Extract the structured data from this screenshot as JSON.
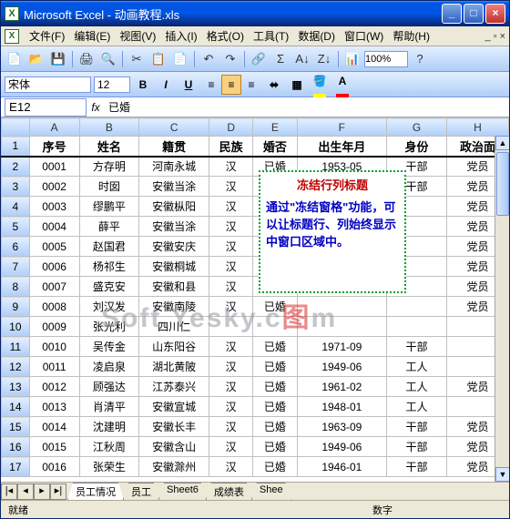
{
  "window": {
    "title": "Microsoft Excel - 动画教程.xls"
  },
  "menu": [
    "文件(F)",
    "编辑(E)",
    "视图(V)",
    "插入(I)",
    "格式(O)",
    "工具(T)",
    "数据(D)",
    "窗口(W)",
    "帮助(H)"
  ],
  "toolbar": {
    "zoom": "100%"
  },
  "fmt": {
    "font": "宋体",
    "size": "12"
  },
  "fx": {
    "name": "E12",
    "label": "fx",
    "value": "已婚"
  },
  "columns": [
    "A",
    "B",
    "C",
    "D",
    "E",
    "F",
    "G",
    "H"
  ],
  "headers": [
    "序号",
    "姓名",
    "籍贯",
    "民族",
    "婚否",
    "出生年月",
    "身份",
    "政治面"
  ],
  "rows": [
    [
      "0001",
      "方存明",
      "河南永城",
      "汉",
      "已婚",
      "1953-05",
      "干部",
      "党员"
    ],
    [
      "0002",
      "时囡",
      "安徽当涂",
      "汉",
      "已婚",
      "1947-10",
      "干部",
      "党员"
    ],
    [
      "0003",
      "缪鹏平",
      "安徽枞阳",
      "汉",
      "已婚",
      "",
      "",
      "党员"
    ],
    [
      "0004",
      "薛平",
      "安徽当涂",
      "汉",
      "已婚",
      "",
      "",
      "党员"
    ],
    [
      "0005",
      "赵国君",
      "安徽安庆",
      "汉",
      "已婚",
      "",
      "",
      "党员"
    ],
    [
      "0006",
      "杨祁生",
      "安徽桐城",
      "汉",
      "已婚",
      "",
      "",
      "党员"
    ],
    [
      "0007",
      "盛克安",
      "安徽和县",
      "汉",
      "已婚",
      "",
      "",
      "党员"
    ],
    [
      "0008",
      "刘汉发",
      "安徽南陵",
      "汉",
      "已婚",
      "",
      "",
      "党员"
    ],
    [
      "0009",
      "张光利",
      "四川仁",
      "",
      "",
      "",
      "",
      ""
    ],
    [
      "0010",
      "吴传金",
      "山东阳谷",
      "汉",
      "已婚",
      "1971-09",
      "干部",
      ""
    ],
    [
      "0011",
      "凌启泉",
      "湖北黄陂",
      "汉",
      "已婚",
      "1949-06",
      "工人",
      ""
    ],
    [
      "0012",
      "顾强达",
      "江苏泰兴",
      "汉",
      "已婚",
      "1961-02",
      "工人",
      "党员"
    ],
    [
      "0013",
      "肖清平",
      "安徽宣城",
      "汉",
      "已婚",
      "1948-01",
      "工人",
      ""
    ],
    [
      "0014",
      "沈建明",
      "安徽长丰",
      "汉",
      "已婚",
      "1963-09",
      "干部",
      "党员"
    ],
    [
      "0015",
      "江秋周",
      "安徽含山",
      "汉",
      "已婚",
      "1949-06",
      "干部",
      "党员"
    ],
    [
      "0016",
      "张荣生",
      "安徽滁州",
      "汉",
      "已婚",
      "1946-01",
      "干部",
      "党员"
    ]
  ],
  "callout": {
    "title": "冻结行列标题",
    "body": "通过\"冻结窗格\"功能，可以让标题行、列始终显示中窗口区域中。"
  },
  "watermark": {
    "t1": "Soft.Yesky.c",
    "t2": "图",
    "t3": "m"
  },
  "tabs": [
    "员工情况",
    "员工",
    "Sheet6",
    "成绩表",
    "Shee"
  ],
  "status": {
    "left": "就绪",
    "right": "数字"
  },
  "colors": {
    "title_grad_top": "#3a95ff",
    "title_grad_bot": "#0a246a",
    "toolbar_top": "#e3efff",
    "toolbar_bot": "#b0cef8",
    "callout_border": "#00a030",
    "callout_title": "#c00000",
    "callout_body": "#0000c0"
  }
}
